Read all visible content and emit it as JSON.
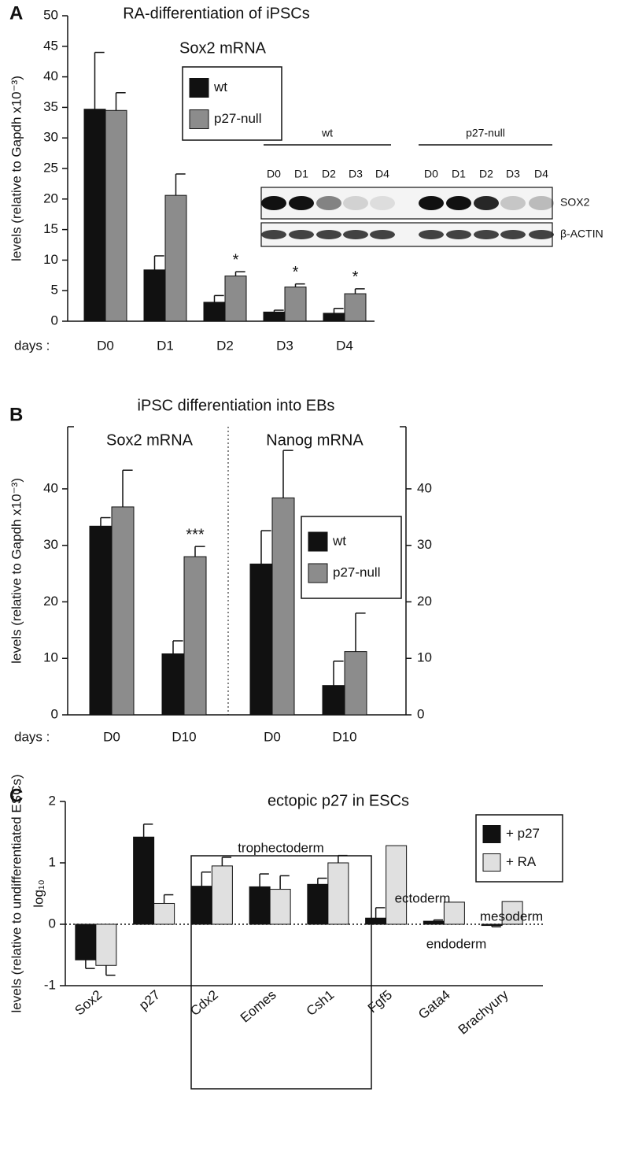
{
  "chart_data": [
    {
      "type": "bar",
      "label": "A",
      "title": "RA-differentiation of iPSCs",
      "ylabel": "levels (relative to Gapdh x10⁻³)",
      "xprefix": "days :",
      "legend": [
        {
          "name": "wt",
          "color": "#111111"
        },
        {
          "name": "p27-null",
          "color": "#8c8c8c"
        }
      ],
      "ylim": [
        0,
        50
      ],
      "yticks": [
        0,
        5,
        10,
        15,
        20,
        25,
        30,
        35,
        40,
        45,
        50
      ],
      "panels": [
        {
          "subtitle": "Sox2  mRNA",
          "categories": [
            "D0",
            "D1",
            "D2",
            "D3",
            "D4"
          ],
          "series": [
            {
              "values": [
                34.7,
                8.4,
                3.1,
                1.5,
                1.3
              ],
              "errors": [
                9.3,
                2.3,
                1.1,
                0.3,
                0.8
              ]
            },
            {
              "values": [
                34.5,
                20.6,
                7.4,
                5.6,
                4.5
              ],
              "errors": [
                2.9,
                3.5,
                0.7,
                0.5,
                0.8
              ],
              "significance": [
                null,
                null,
                "*",
                "*",
                "*"
              ]
            }
          ]
        }
      ],
      "inset": {
        "groups": [
          {
            "label": "wt",
            "lanes": [
              "D0",
              "D1",
              "D2",
              "D3",
              "D4"
            ]
          },
          {
            "label": "p27-null",
            "lanes": [
              "D0",
              "D1",
              "D2",
              "D3",
              "D4"
            ]
          }
        ],
        "rows": [
          "SOX2",
          "β-ACTIN"
        ]
      }
    },
    {
      "type": "bar",
      "label": "B",
      "title": "iPSC differentiation into EBs",
      "ylabel": "levels (relative to Gapdh x10⁻³)",
      "xprefix": "days :",
      "legend": [
        {
          "name": "wt",
          "color": "#111111"
        },
        {
          "name": "p27-null",
          "color": "#8c8c8c"
        }
      ],
      "ylim": [
        0,
        51
      ],
      "yticks": [
        0,
        10,
        20,
        30,
        40
      ],
      "y2lim": [
        0,
        51
      ],
      "y2ticks": [
        0,
        10,
        20,
        30,
        40
      ],
      "panels": [
        {
          "subtitle": "Sox2 mRNA",
          "categories": [
            "D0",
            "D10"
          ],
          "series": [
            {
              "values": [
                33.4,
                10.8
              ],
              "errors": [
                1.5,
                2.3
              ]
            },
            {
              "values": [
                36.8,
                28
              ],
              "errors": [
                6.5,
                1.8
              ],
              "significance": [
                null,
                "***"
              ]
            }
          ]
        },
        {
          "subtitle": "Nanog mRNA",
          "categories": [
            "D0",
            "D10"
          ],
          "axis": "y2",
          "series": [
            {
              "values": [
                26.7,
                5.2
              ],
              "errors": [
                5.9,
                4.3
              ]
            },
            {
              "values": [
                38.4,
                11.2
              ],
              "errors": [
                8.4,
                6.8
              ]
            }
          ]
        }
      ]
    },
    {
      "type": "bar",
      "label": "C",
      "title": "ectopic p27 in ESCs",
      "ylabel": "levels (relative to undifferentiated ESCs)",
      "yunit": "log₁₀",
      "legend": [
        {
          "name": "+ p27",
          "color": "#111111"
        },
        {
          "name": "+ RA",
          "color": "#e0e0e0"
        }
      ],
      "ylim": [
        -1,
        2
      ],
      "yticks": [
        -1,
        0,
        1,
        2
      ],
      "zero_line": true,
      "annotations": [
        {
          "label": "trophectoderm"
        },
        {
          "label": "ectoderm"
        },
        {
          "label": "endoderm"
        },
        {
          "label": "mesoderm"
        }
      ],
      "panels": [
        {
          "categories": [
            "Sox2",
            "p27",
            "Cdx2",
            "Eomes",
            "Csh1",
            "Fgf5",
            "Gata4",
            "Brachyury"
          ],
          "series": [
            {
              "values": [
                -0.58,
                1.42,
                0.62,
                0.61,
                0.65,
                0.1,
                0.05,
                -0.02
              ],
              "errors": [
                0.14,
                0.21,
                0.23,
                0.21,
                0.1,
                0.17,
                0.02,
                0.02
              ]
            },
            {
              "values": [
                -0.67,
                0.34,
                0.95,
                0.57,
                1.0,
                1.28,
                0.36,
                0.37
              ],
              "errors": [
                0.16,
                0.14,
                0.14,
                0.22,
                0.12,
                null,
                null,
                null
              ]
            }
          ]
        }
      ]
    }
  ]
}
